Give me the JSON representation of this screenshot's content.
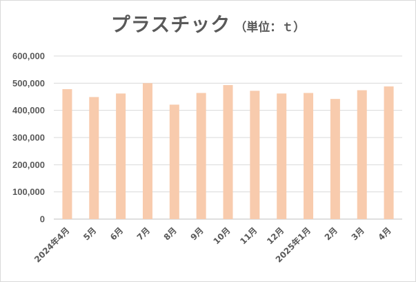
{
  "chart_data": {
    "type": "bar",
    "title": "プラスチック",
    "subtitle": "（単位：ｔ）",
    "categories": [
      "2024年4月",
      "5月",
      "6月",
      "7月",
      "8月",
      "9月",
      "10月",
      "11月",
      "12月",
      "2025年1月",
      "2月",
      "3月",
      "4月"
    ],
    "values": [
      478000,
      449000,
      462000,
      500000,
      421000,
      464000,
      493000,
      472000,
      462000,
      464000,
      442000,
      474000,
      488000
    ],
    "ylim": [
      0,
      600000
    ],
    "yticks": [
      0,
      100000,
      200000,
      300000,
      400000,
      500000,
      600000
    ],
    "ytick_labels": [
      "0",
      "100,000",
      "200,000",
      "300,000",
      "400,000",
      "500,000",
      "600,000"
    ],
    "grid": true,
    "bar_color": "#f8cbad",
    "xlabel": "",
    "ylabel": ""
  }
}
